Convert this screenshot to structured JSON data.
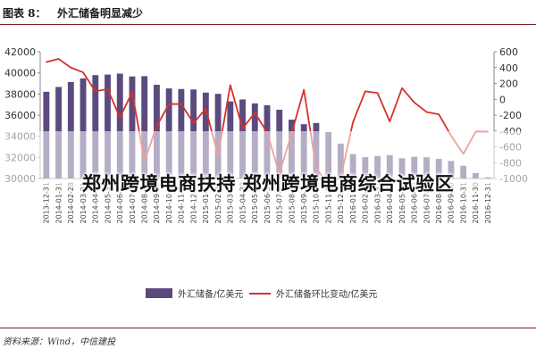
{
  "header": {
    "label": "图表 8：",
    "title": "外汇储备明显减少"
  },
  "overlay": {
    "text": "郑州跨境电商扶持 郑州跨境电商综合试验区"
  },
  "source": "资料来源：Wind，中信建投",
  "colors": {
    "bar": "#5b4a7e",
    "line": "#d9302c",
    "rule": "#7a1f23"
  },
  "chart_data": {
    "type": "bar",
    "categories": [
      "2013-12-31",
      "2014-01-31",
      "2014-02-28",
      "2014-03-31",
      "2014-04-30",
      "2014-05-31",
      "2014-06-30",
      "2014-07-31",
      "2014-08-31",
      "2014-09-30",
      "2014-10-31",
      "2014-11-30",
      "2014-12-31",
      "2015-01-31",
      "2015-02-28",
      "2015-03-31",
      "2015-04-30",
      "2015-05-31",
      "2015-06-30",
      "2015-07-31",
      "2015-08-31",
      "2015-09-30",
      "2015-10-31",
      "2015-11-30",
      "2015-12-31",
      "2016-01-31",
      "2016-02-29",
      "2016-03-31",
      "2016-04-30",
      "2016-05-31",
      "2016-06-30",
      "2016-07-31",
      "2016-08-31",
      "2016-09-30",
      "2016-10-31",
      "2016-11-30",
      "2016-12-31"
    ],
    "series": [
      {
        "name": "外汇储备/亿美元",
        "axis": "left",
        "type": "bar",
        "values": [
          38213,
          38666,
          39137,
          39481,
          39788,
          39839,
          39932,
          39662,
          39688,
          38877,
          38529,
          38473,
          38430,
          38134,
          38015,
          37301,
          37481,
          37111,
          36938,
          36513,
          35574,
          35141,
          35255,
          34383,
          33304,
          32309,
          32023,
          32126,
          32197,
          31917,
          32052,
          32011,
          31852,
          31664,
          31207,
          30516,
          30105
        ]
      },
      {
        "name": "外汇储备环比变动/亿美元",
        "axis": "right",
        "type": "line",
        "values": [
          470,
          510,
          400,
          340,
          100,
          130,
          -230,
          90,
          -780,
          -340,
          -60,
          -60,
          -300,
          -120,
          -710,
          180,
          -370,
          -170,
          -420,
          -940,
          -430,
          120,
          -870,
          -1080,
          -990,
          -290,
          100,
          80,
          -280,
          140,
          -40,
          -160,
          -190,
          -460,
          -690,
          -410,
          -410
        ]
      }
    ],
    "y_left": {
      "min": 30000,
      "max": 42000,
      "ticks": [
        "30000",
        "32000",
        "34000",
        "36000",
        "38000",
        "40000",
        "42000"
      ]
    },
    "y_right": {
      "min": -1000,
      "max": 600,
      "ticks": [
        "-1000",
        "-800",
        "-600",
        "-400",
        "-200",
        "0",
        "200",
        "400",
        "600"
      ]
    },
    "legend": [
      "外汇储备/亿美元",
      "外汇储备环比变动/亿美元"
    ]
  }
}
